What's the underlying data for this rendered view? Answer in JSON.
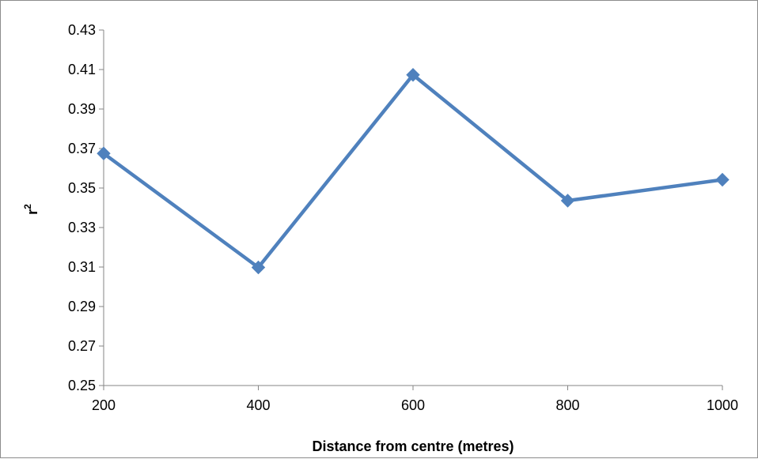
{
  "chart_data": {
    "type": "line",
    "title": "",
    "xlabel": "Distance from centre (metres)",
    "ylabel": "r",
    "ylabel_superscript": "2",
    "x": [
      200,
      400,
      600,
      800,
      1000
    ],
    "series": [
      {
        "values": [
          0.3675,
          0.3098,
          0.4073,
          0.3436,
          0.3542
        ]
      }
    ],
    "xlim": [
      200,
      1000
    ],
    "ylim": [
      0.25,
      0.43
    ],
    "xticks": [
      "200",
      "400",
      "600",
      "800",
      "1000"
    ],
    "yticks": [
      "0.25",
      "0.27",
      "0.29",
      "0.31",
      "0.33",
      "0.35",
      "0.37",
      "0.39",
      "0.41",
      "0.43"
    ],
    "grid": false,
    "legend": "none",
    "colors": {
      "series": "#4F81BD",
      "axis": "#868686"
    }
  }
}
